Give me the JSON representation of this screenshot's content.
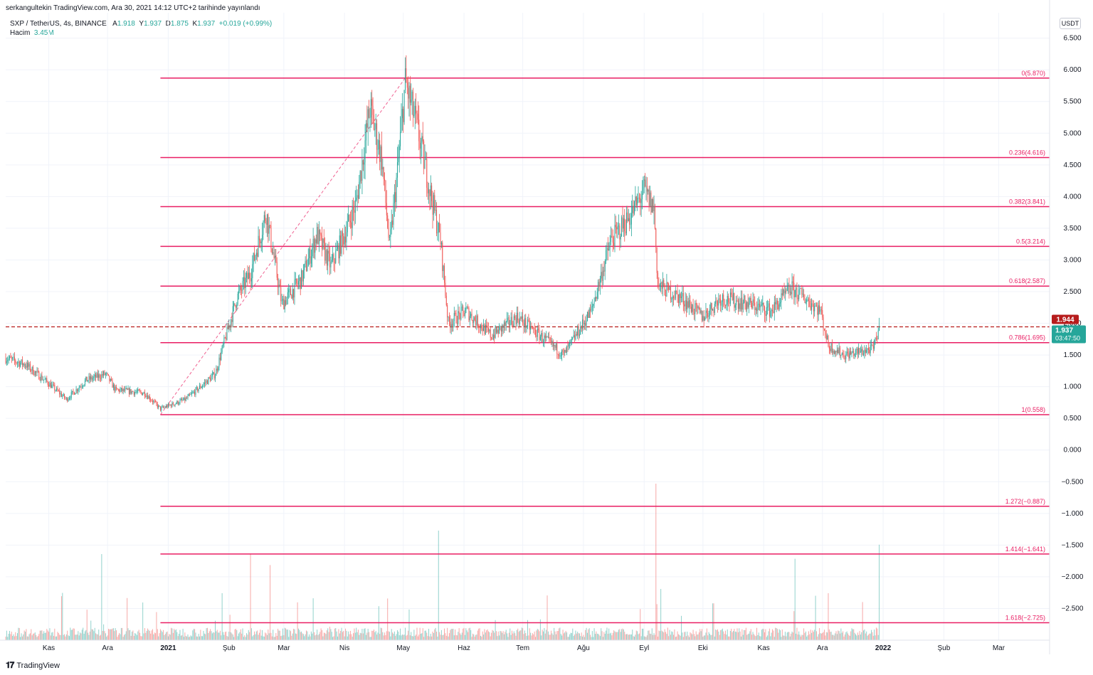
{
  "header": {
    "publisher_line": "serkangultekin TradingView.com, Ara 30, 2021 14:12 UTC+2 tarihinde yayınlandı",
    "symbol": "SXP / TetherUS, 4s, BINANCE",
    "open_label": "A",
    "open": "1.918",
    "high_label": "Y",
    "high": "1.937",
    "low_label": "D",
    "low": "1.875",
    "close_label": "K",
    "close": "1.937",
    "change": "+0.019 (+0.99%)",
    "volume_label": "Hacim",
    "volume": "3.45M"
  },
  "price_axis": {
    "unit": "USDT"
  },
  "price_badges": {
    "prev_close": "1.944",
    "last_price": "1.937",
    "countdown": "03:47:50"
  },
  "footer": {
    "brand": "TradingView",
    "logo_glyph": "𝟏𝟕"
  },
  "colors": {
    "up": "#26a69a",
    "down": "#ef5350",
    "fib": "#e91e63",
    "prev_close": "#b71c1c"
  },
  "chart_data": {
    "type": "candlestick",
    "ylim": [
      -3.0,
      6.9
    ],
    "y_ticks": [
      6.5,
      6.0,
      5.5,
      5.0,
      4.5,
      4.0,
      3.5,
      3.0,
      2.5,
      2.0,
      1.5,
      1.0,
      0.5,
      0.0,
      -0.5,
      -1.0,
      -1.5,
      -2.0,
      -2.5
    ],
    "y_tick_labels": [
      "6.500",
      "6.000",
      "5.500",
      "5.000",
      "4.500",
      "4.000",
      "3.500",
      "3.000",
      "2.500",
      "2.000",
      "1.500",
      "1.000",
      "0.500",
      "0.000",
      "−0.500",
      "−1.000",
      "−1.500",
      "−2.000",
      "−2.500"
    ],
    "x_ticks": [
      {
        "label": "Kas",
        "date": "2020-11-01"
      },
      {
        "label": "Ara",
        "date": "2020-12-01"
      },
      {
        "label": "2021",
        "date": "2021-01-01"
      },
      {
        "label": "Şub",
        "date": "2021-02-01"
      },
      {
        "label": "Mar",
        "date": "2021-03-01"
      },
      {
        "label": "Nis",
        "date": "2021-04-01"
      },
      {
        "label": "May",
        "date": "2021-05-01"
      },
      {
        "label": "Haz",
        "date": "2021-06-01"
      },
      {
        "label": "Tem",
        "date": "2021-07-01"
      },
      {
        "label": "Ağu",
        "date": "2021-08-01"
      },
      {
        "label": "Eyl",
        "date": "2021-09-01"
      },
      {
        "label": "Eki",
        "date": "2021-10-01"
      },
      {
        "label": "Kas",
        "date": "2021-11-01"
      },
      {
        "label": "Ara",
        "date": "2021-12-01"
      },
      {
        "label": "2022",
        "date": "2022-01-01"
      },
      {
        "label": "Şub",
        "date": "2022-02-01"
      },
      {
        "label": "Mar",
        "date": "2022-03-01"
      }
    ],
    "xlim": [
      "2020-10-10",
      "2022-03-27"
    ],
    "price_path": [
      [
        "2020-10-10",
        1.45
      ],
      [
        "2020-10-20",
        1.35
      ],
      [
        "2020-11-01",
        1.05
      ],
      [
        "2020-11-10",
        0.8
      ],
      [
        "2020-11-20",
        1.1
      ],
      [
        "2020-11-30",
        1.2
      ],
      [
        "2020-12-05",
        0.95
      ],
      [
        "2020-12-20",
        0.9
      ],
      [
        "2020-12-28",
        0.65
      ],
      [
        "2021-01-10",
        0.8
      ],
      [
        "2021-01-25",
        1.2
      ],
      [
        "2021-02-05",
        2.4
      ],
      [
        "2021-02-12",
        2.8
      ],
      [
        "2021-02-20",
        3.75
      ],
      [
        "2021-02-28",
        2.3
      ],
      [
        "2021-03-10",
        2.7
      ],
      [
        "2021-03-18",
        3.4
      ],
      [
        "2021-03-25",
        2.9
      ],
      [
        "2021-04-01",
        3.4
      ],
      [
        "2021-04-07",
        3.9
      ],
      [
        "2021-04-14",
        5.4
      ],
      [
        "2021-04-20",
        4.6
      ],
      [
        "2021-04-24",
        3.2
      ],
      [
        "2021-04-28",
        4.4
      ],
      [
        "2021-05-02",
        5.8
      ],
      [
        "2021-05-08",
        5.1
      ],
      [
        "2021-05-14",
        4.2
      ],
      [
        "2021-05-20",
        3.3
      ],
      [
        "2021-05-24",
        2.0
      ],
      [
        "2021-06-02",
        2.2
      ],
      [
        "2021-06-15",
        1.8
      ],
      [
        "2021-06-28",
        2.1
      ],
      [
        "2021-07-10",
        1.8
      ],
      [
        "2021-07-22",
        1.5
      ],
      [
        "2021-08-05",
        2.2
      ],
      [
        "2021-08-15",
        3.3
      ],
      [
        "2021-08-25",
        3.7
      ],
      [
        "2021-09-01",
        4.1
      ],
      [
        "2021-09-06",
        3.8
      ],
      [
        "2021-09-08",
        2.6
      ],
      [
        "2021-09-20",
        2.4
      ],
      [
        "2021-10-01",
        2.1
      ],
      [
        "2021-10-10",
        2.4
      ],
      [
        "2021-10-25",
        2.3
      ],
      [
        "2021-11-05",
        2.2
      ],
      [
        "2021-11-15",
        2.55
      ],
      [
        "2021-11-22",
        2.4
      ],
      [
        "2021-11-30",
        2.2
      ],
      [
        "2021-12-04",
        1.65
      ],
      [
        "2021-12-12",
        1.5
      ],
      [
        "2021-12-20",
        1.55
      ],
      [
        "2021-12-27",
        1.6
      ],
      [
        "2021-12-30",
        1.937
      ]
    ],
    "volume_spikes": [
      {
        "date": "2020-11-28",
        "value": 0.55
      },
      {
        "date": "2021-02-12",
        "value": 0.55
      },
      {
        "date": "2021-02-22",
        "value": 0.48
      },
      {
        "date": "2021-05-19",
        "value": 0.7
      },
      {
        "date": "2021-09-07",
        "value": 1.0
      },
      {
        "date": "2021-11-17",
        "value": 0.52
      },
      {
        "date": "2021-12-04",
        "value": 0.3
      },
      {
        "date": "2021-12-30",
        "value": 0.61
      }
    ],
    "fib_retracement": {
      "start": "2020-12-28",
      "end": "2022-03-27",
      "trend_line": [
        [
          "2020-12-28",
          0.558
        ],
        [
          "2021-05-02",
          5.87
        ]
      ],
      "levels": [
        {
          "label": "0(5.870)",
          "value": 5.87
        },
        {
          "label": "0.236(4.616)",
          "value": 4.616
        },
        {
          "label": "0.382(3.841)",
          "value": 3.841
        },
        {
          "label": "0.5(3.214)",
          "value": 3.214
        },
        {
          "label": "0.618(2.587)",
          "value": 2.587
        },
        {
          "label": "0.786(1.695)",
          "value": 1.695
        },
        {
          "label": "1(0.558)",
          "value": 0.558
        },
        {
          "label": "1.272(−0.887)",
          "value": -0.887
        },
        {
          "label": "1.414(−1.641)",
          "value": -1.641
        },
        {
          "label": "1.618(−2.725)",
          "value": -2.725
        }
      ]
    },
    "prev_close_line": 1.944,
    "last_price": 1.937
  }
}
